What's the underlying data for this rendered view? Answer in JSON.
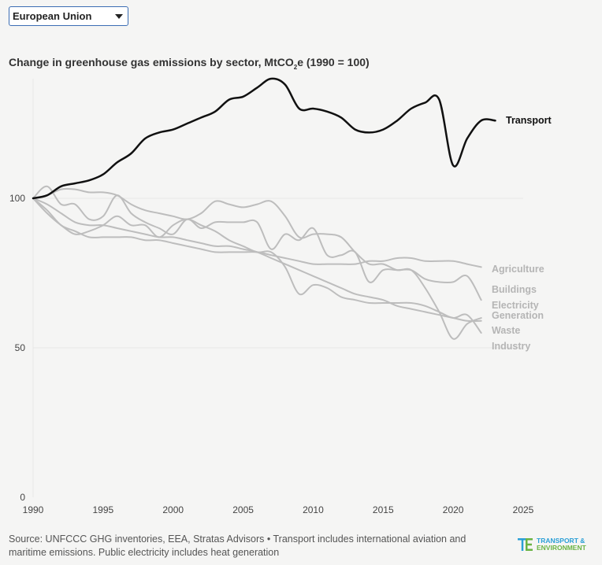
{
  "selector": {
    "selected": "European Union"
  },
  "title": {
    "main": "Change in greenhouse gas emissions by sector, MtCO",
    "sub": "2",
    "tail": "e (1990 = 100)"
  },
  "footnote": "Source: UNFCCC GHG inventories, EEA, Stratas Advisors • Transport includes international aviation and maritime emissions. Public electricity includes heat generation",
  "logo": {
    "line1": "TRANSPORT &",
    "line2": "ENVIRONMENT"
  },
  "colors": {
    "highlight": "#111111",
    "muted": "#bdbdbd",
    "muted_label": "#b5b5b5",
    "grid": "#e6e6e6"
  },
  "chart_data": {
    "type": "line",
    "xlim": [
      1990,
      2025
    ],
    "ylim": [
      0,
      140
    ],
    "x_ticks": [
      1990,
      1995,
      2000,
      2005,
      2010,
      2015,
      2020,
      2025
    ],
    "y_ticks": [
      0,
      50,
      100
    ],
    "series": [
      {
        "name": "Transport",
        "highlight": true,
        "x": [
          1990,
          1991,
          1992,
          1993,
          1994,
          1995,
          1996,
          1997,
          1998,
          1999,
          2000,
          2001,
          2002,
          2003,
          2004,
          2005,
          2006,
          2007,
          2008,
          2009,
          2010,
          2011,
          2012,
          2013,
          2014,
          2015,
          2016,
          2017,
          2018,
          2019,
          2020,
          2021,
          2022,
          2023
        ],
        "y": [
          100,
          101,
          104,
          105,
          106,
          108,
          112,
          115,
          120,
          122,
          123,
          125,
          127,
          129,
          133,
          134,
          137,
          140,
          138,
          130,
          130,
          129,
          127,
          123,
          122,
          123,
          126,
          130,
          132,
          133,
          111,
          120,
          126,
          126
        ]
      },
      {
        "name": "Agriculture",
        "x": [
          1990,
          1991,
          1992,
          1993,
          1994,
          1995,
          1996,
          1997,
          1998,
          1999,
          2000,
          2001,
          2002,
          2003,
          2004,
          2005,
          2006,
          2007,
          2008,
          2009,
          2010,
          2011,
          2012,
          2013,
          2014,
          2015,
          2016,
          2017,
          2018,
          2019,
          2020,
          2021,
          2022
        ],
        "y": [
          100,
          96,
          91,
          89,
          87,
          87,
          87,
          87,
          86,
          86,
          85,
          84,
          83,
          82,
          82,
          82,
          82,
          81,
          80,
          79,
          78,
          78,
          78,
          78,
          79,
          79,
          80,
          80,
          79,
          79,
          79,
          78,
          77
        ]
      },
      {
        "name": "Buildings",
        "x": [
          1990,
          1991,
          1992,
          1993,
          1994,
          1995,
          1996,
          1997,
          1998,
          1999,
          2000,
          2001,
          2002,
          2003,
          2004,
          2005,
          2006,
          2007,
          2008,
          2009,
          2010,
          2011,
          2012,
          2013,
          2014,
          2015,
          2016,
          2017,
          2018,
          2019,
          2020,
          2021,
          2022
        ],
        "y": [
          100,
          104,
          98,
          98,
          93,
          94,
          101,
          95,
          92,
          90,
          88,
          93,
          90,
          92,
          92,
          92,
          92,
          83,
          88,
          86,
          90,
          81,
          81,
          82,
          72,
          76,
          76,
          76,
          73,
          72,
          72,
          74,
          66
        ]
      },
      {
        "name": "Electricity Generation",
        "x": [
          1990,
          1991,
          1992,
          1993,
          1994,
          1995,
          1996,
          1997,
          1998,
          1999,
          2000,
          2001,
          2002,
          2003,
          2004,
          2005,
          2006,
          2007,
          2008,
          2009,
          2010,
          2011,
          2012,
          2013,
          2014,
          2015,
          2016,
          2017,
          2018,
          2019,
          2020,
          2021,
          2022
        ],
        "y": [
          100,
          101,
          103,
          103,
          102,
          102,
          101,
          98,
          96,
          95,
          94,
          93,
          95,
          99,
          98,
          97,
          98,
          99,
          94,
          87,
          88,
          88,
          87,
          82,
          78,
          78,
          76,
          76,
          70,
          62,
          53,
          58,
          60
        ]
      },
      {
        "name": "Waste",
        "x": [
          1990,
          1991,
          1992,
          1993,
          1994,
          1995,
          1996,
          1997,
          1998,
          1999,
          2000,
          2001,
          2002,
          2003,
          2004,
          2005,
          2006,
          2007,
          2008,
          2009,
          2010,
          2011,
          2012,
          2013,
          2014,
          2015,
          2016,
          2017,
          2018,
          2019,
          2020,
          2021,
          2022
        ],
        "y": [
          100,
          98,
          95,
          92,
          91,
          91,
          90,
          89,
          88,
          87,
          87,
          86,
          85,
          84,
          84,
          83,
          82,
          80,
          78,
          76,
          74,
          72,
          70,
          68,
          67,
          66,
          64,
          63,
          62,
          61,
          60,
          59,
          59
        ]
      },
      {
        "name": "Industry",
        "x": [
          1990,
          1991,
          1992,
          1993,
          1994,
          1995,
          1996,
          1997,
          1998,
          1999,
          2000,
          2001,
          2002,
          2003,
          2004,
          2005,
          2006,
          2007,
          2008,
          2009,
          2010,
          2011,
          2012,
          2013,
          2014,
          2015,
          2016,
          2017,
          2018,
          2019,
          2020,
          2021,
          2022
        ],
        "y": [
          100,
          95,
          91,
          88,
          89,
          91,
          94,
          91,
          91,
          87,
          91,
          93,
          91,
          89,
          86,
          84,
          82,
          82,
          77,
          68,
          71,
          70,
          67,
          66,
          65,
          65,
          65,
          65,
          64,
          62,
          60,
          61,
          55
        ]
      }
    ]
  }
}
